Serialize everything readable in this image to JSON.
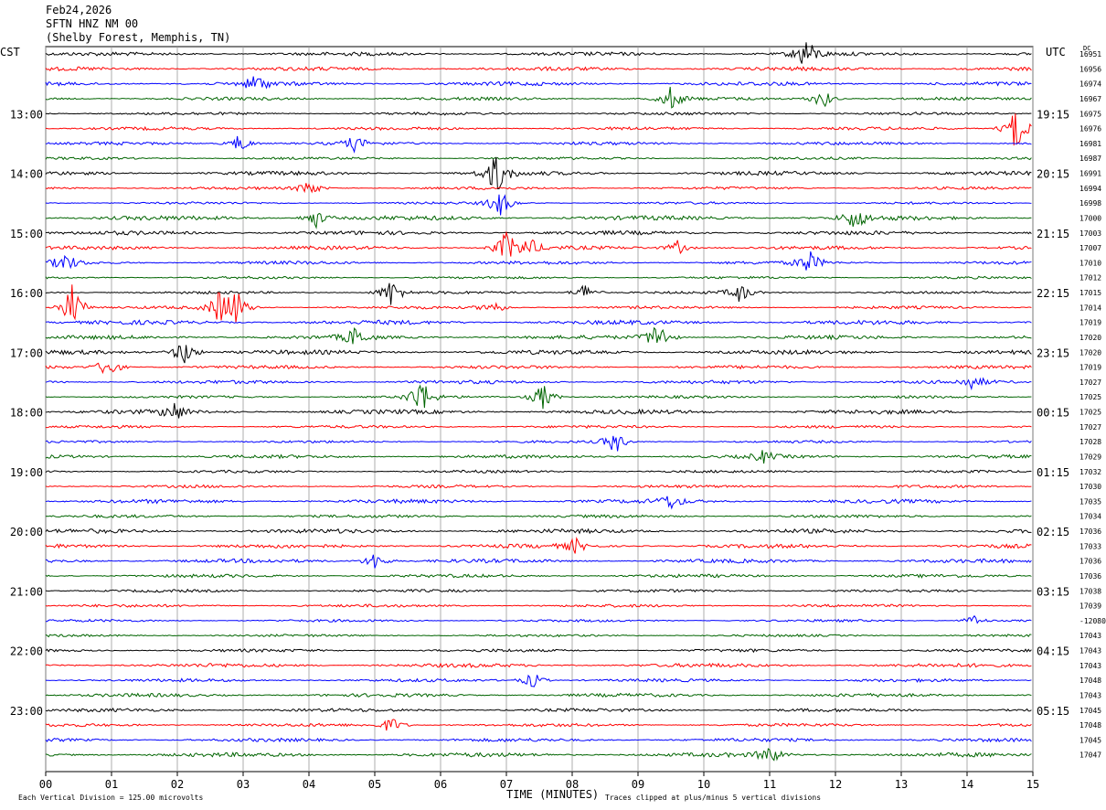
{
  "header": {
    "date": "Feb24,2026",
    "channel": "SFTN HNZ NM 00",
    "location": "(Shelby Forest, Memphis, TN)"
  },
  "labels": {
    "left_zone": "CST",
    "right_zone": "UTC",
    "right_column_header": "DC",
    "x_axis_title": "TIME (MINUTES)",
    "scale_note": "Each Vertical Division = 125.00 microvolts",
    "clip_note": "Traces clipped at plus/minus 5 vertical divisions"
  },
  "chart_data": {
    "type": "line",
    "title": "SFTN HNZ NM 00",
    "xlabel": "TIME (MINUTES)",
    "xlim": [
      0,
      15
    ],
    "x_ticks": [
      "00",
      "01",
      "02",
      "03",
      "04",
      "05",
      "06",
      "07",
      "08",
      "09",
      "10",
      "11",
      "12",
      "13",
      "14",
      "15"
    ],
    "rows": 48,
    "row_minutes": 15,
    "trace_colors": [
      "#000000",
      "#ff0000",
      "#0000ff",
      "#006400"
    ],
    "left_time_labels": [
      {
        "row": 4,
        "label": "13:00"
      },
      {
        "row": 8,
        "label": "14:00"
      },
      {
        "row": 12,
        "label": "15:00"
      },
      {
        "row": 16,
        "label": "16:00"
      },
      {
        "row": 20,
        "label": "17:00"
      },
      {
        "row": 24,
        "label": "18:00"
      },
      {
        "row": 28,
        "label": "19:00"
      },
      {
        "row": 32,
        "label": "20:00"
      },
      {
        "row": 36,
        "label": "21:00"
      },
      {
        "row": 40,
        "label": "22:00"
      },
      {
        "row": 44,
        "label": "23:00"
      }
    ],
    "right_time_labels": [
      {
        "row": 4,
        "label": "19:15"
      },
      {
        "row": 8,
        "label": "20:15"
      },
      {
        "row": 12,
        "label": "21:15"
      },
      {
        "row": 16,
        "label": "22:15"
      },
      {
        "row": 20,
        "label": "23:15"
      },
      {
        "row": 24,
        "label": "00:15"
      },
      {
        "row": 28,
        "label": "01:15"
      },
      {
        "row": 32,
        "label": "02:15"
      },
      {
        "row": 36,
        "label": "03:15"
      },
      {
        "row": 40,
        "label": "04:15"
      },
      {
        "row": 44,
        "label": "05:15"
      }
    ],
    "dc_offsets": [
      "16951",
      "16956",
      "16974",
      "16967",
      "16975",
      "16976",
      "16981",
      "16987",
      "16991",
      "16994",
      "16998",
      "17000",
      "17003",
      "17007",
      "17010",
      "17012",
      "17015",
      "17014",
      "17019",
      "17020",
      "17020",
      "17019",
      "17027",
      "17025",
      "17025",
      "17027",
      "17028",
      "17029",
      "17032",
      "17030",
      "17035",
      "17034",
      "17036",
      "17033",
      "17036",
      "17036",
      "17038",
      "17039",
      "-12080",
      "17043",
      "17043",
      "17043",
      "17048",
      "17043",
      "17045",
      "17048",
      "17045",
      "17047"
    ],
    "events": [
      {
        "row": 0,
        "minute": 11.55,
        "amp": 3.5
      },
      {
        "row": 2,
        "minute": 3.2,
        "amp": 2.0
      },
      {
        "row": 3,
        "minute": 9.5,
        "amp": 2.5
      },
      {
        "row": 3,
        "minute": 11.8,
        "amp": 2.2
      },
      {
        "row": 5,
        "minute": 14.75,
        "amp": 5.0
      },
      {
        "row": 6,
        "minute": 2.95,
        "amp": 2.0
      },
      {
        "row": 6,
        "minute": 4.7,
        "amp": 1.5
      },
      {
        "row": 8,
        "minute": 6.85,
        "amp": 4.5
      },
      {
        "row": 9,
        "minute": 4.0,
        "amp": 1.8
      },
      {
        "row": 10,
        "minute": 6.9,
        "amp": 3.0
      },
      {
        "row": 11,
        "minute": 4.1,
        "amp": 2.0
      },
      {
        "row": 11,
        "minute": 12.3,
        "amp": 2.5
      },
      {
        "row": 13,
        "minute": 7.0,
        "amp": 3.5
      },
      {
        "row": 13,
        "minute": 7.35,
        "amp": 2.0
      },
      {
        "row": 13,
        "minute": 9.6,
        "amp": 1.5
      },
      {
        "row": 14,
        "minute": 0.3,
        "amp": 2.0
      },
      {
        "row": 14,
        "minute": 11.6,
        "amp": 2.5
      },
      {
        "row": 16,
        "minute": 5.25,
        "amp": 3.0
      },
      {
        "row": 16,
        "minute": 8.2,
        "amp": 2.0
      },
      {
        "row": 16,
        "minute": 10.55,
        "amp": 2.0
      },
      {
        "row": 17,
        "minute": 0.4,
        "amp": 5.0
      },
      {
        "row": 17,
        "minute": 2.65,
        "amp": 3.5
      },
      {
        "row": 17,
        "minute": 2.9,
        "amp": 3.5
      },
      {
        "row": 17,
        "minute": 6.8,
        "amp": 1.5
      },
      {
        "row": 19,
        "minute": 4.7,
        "amp": 2.0
      },
      {
        "row": 19,
        "minute": 9.3,
        "amp": 3.5
      },
      {
        "row": 20,
        "minute": 2.1,
        "amp": 3.0
      },
      {
        "row": 21,
        "minute": 0.95,
        "amp": 2.5
      },
      {
        "row": 22,
        "minute": 14.1,
        "amp": 1.5
      },
      {
        "row": 23,
        "minute": 5.7,
        "amp": 4.0
      },
      {
        "row": 23,
        "minute": 7.55,
        "amp": 3.0
      },
      {
        "row": 24,
        "minute": 1.95,
        "amp": 2.0
      },
      {
        "row": 26,
        "minute": 8.65,
        "amp": 2.5
      },
      {
        "row": 27,
        "minute": 10.9,
        "amp": 1.2
      },
      {
        "row": 30,
        "minute": 9.5,
        "amp": 1.5
      },
      {
        "row": 34,
        "minute": 5.0,
        "amp": 2.0
      },
      {
        "row": 33,
        "minute": 8.05,
        "amp": 1.5
      },
      {
        "row": 38,
        "minute": 14.1,
        "amp": 1.2
      },
      {
        "row": 42,
        "minute": 7.4,
        "amp": 1.8
      },
      {
        "row": 45,
        "minute": 5.25,
        "amp": 1.8
      },
      {
        "row": 47,
        "minute": 11.0,
        "amp": 2.0
      }
    ]
  }
}
